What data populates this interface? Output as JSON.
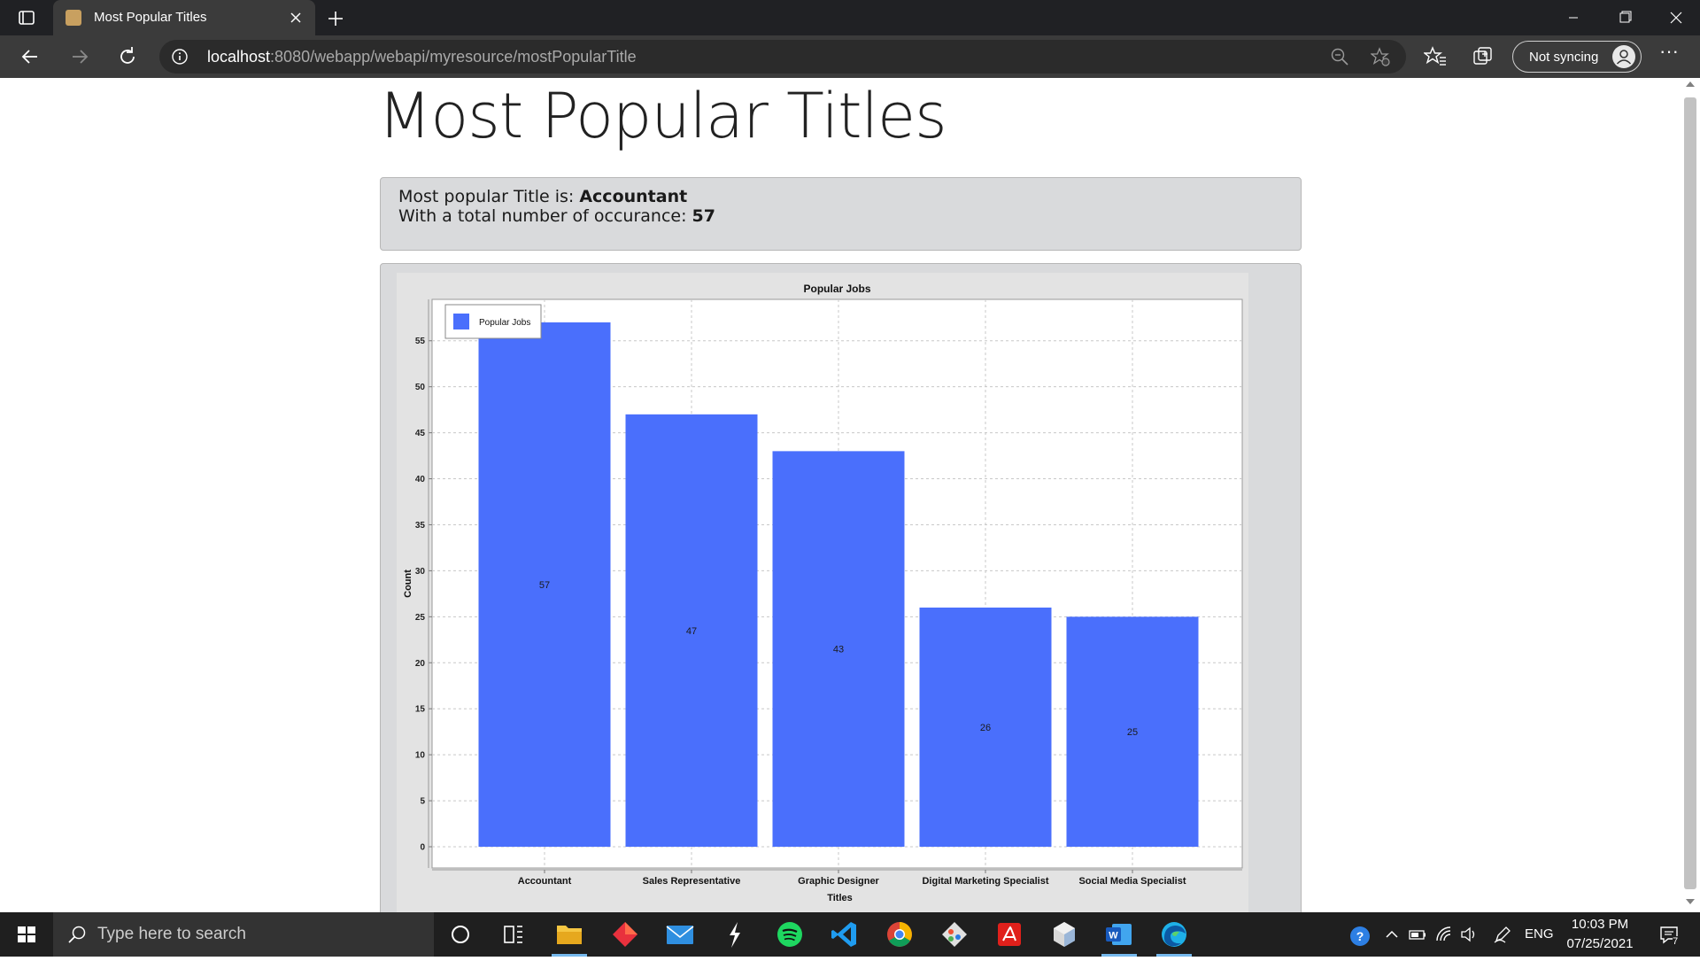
{
  "browser": {
    "tab_title": "Most Popular Titles",
    "url_host": "localhost",
    "url_rest": ":8080/webapp/webapi/myresource/mostPopularTitle",
    "sync_label": "Not syncing"
  },
  "page": {
    "title": "Most Popular Titles",
    "summary_prefix_1": "Most popular Title is: ",
    "summary_value_1": "Accountant",
    "summary_prefix_2": "With a total number of occurance: ",
    "summary_value_2": "57"
  },
  "chart_data": {
    "type": "bar",
    "title": "Popular Jobs",
    "xlabel": "Titles",
    "ylabel": "Count",
    "categories": [
      "Accountant",
      "Sales Representative",
      "Graphic Designer",
      "Digital Marketing Specialist",
      "Social Media Specialist"
    ],
    "series": [
      {
        "name": "Popular Jobs",
        "values": [
          57,
          47,
          43,
          26,
          25
        ],
        "color": "#4a6ffc"
      }
    ],
    "ylim": [
      0,
      59.5
    ],
    "yticks": [
      0,
      5,
      10,
      15,
      20,
      25,
      30,
      35,
      40,
      45,
      50,
      55
    ],
    "grid": true,
    "legend_position": "top-left",
    "data_labels": true
  },
  "taskbar": {
    "search_placeholder": "Type here to search",
    "language": "ENG",
    "time": "10:03 PM",
    "date": "07/25/2021",
    "notification_count": "7",
    "apps": [
      "cortana",
      "task-view",
      "file-explorer",
      "app-red-diamond",
      "mail",
      "app-lightning",
      "spotify",
      "vscode",
      "chrome",
      "app-git",
      "acrobat",
      "app-cube",
      "word",
      "edge"
    ]
  },
  "colors": {
    "accent_bar": "#4a6ffc",
    "panel": "#d9dadc",
    "chrome": "#3b3b3b"
  }
}
